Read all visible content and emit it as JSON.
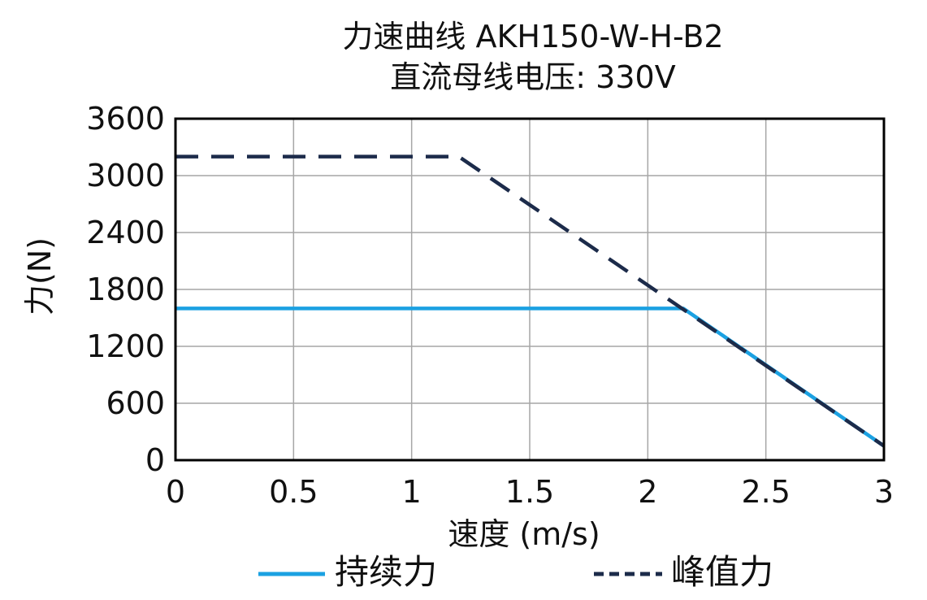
{
  "chart_data": {
    "type": "line",
    "title": "力速曲线 AKH150-W-H-B2",
    "subtitle": "直流母线电压: 330V",
    "xlabel": "速度 (m/s)",
    "ylabel": "力(N)",
    "xlim": [
      0,
      3
    ],
    "ylim": [
      0,
      3600
    ],
    "xticks": [
      0,
      0.5,
      1,
      1.5,
      2,
      2.5,
      3
    ],
    "xtick_labels": [
      "0",
      "0.5",
      "1",
      "1.5",
      "2",
      "2.5",
      "3"
    ],
    "yticks": [
      0,
      600,
      1200,
      1800,
      2400,
      3000,
      3600
    ],
    "ytick_labels": [
      "0",
      "600",
      "1200",
      "1800",
      "2400",
      "3000",
      "3600"
    ],
    "grid": true,
    "legend_position": "bottom",
    "series": [
      {
        "name": "持续力",
        "color": "#1ba1e2",
        "dash": "solid",
        "points": [
          {
            "x": 0,
            "y": 1600
          },
          {
            "x": 2.15,
            "y": 1600
          },
          {
            "x": 3.0,
            "y": 150
          }
        ]
      },
      {
        "name": "峰值力",
        "color": "#1c2b4a",
        "dash": "dashed",
        "points": [
          {
            "x": 0,
            "y": 3200
          },
          {
            "x": 1.2,
            "y": 3200
          },
          {
            "x": 3.0,
            "y": 150
          }
        ]
      }
    ]
  }
}
